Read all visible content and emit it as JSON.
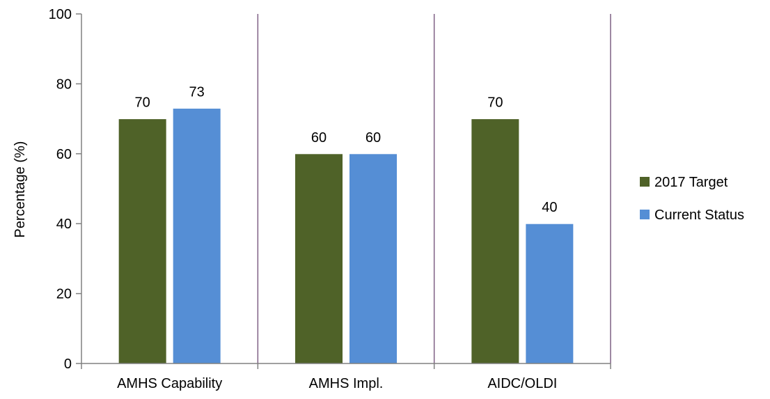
{
  "chart_data": {
    "type": "bar",
    "title": "",
    "xlabel": "",
    "ylabel": "Percentage (%)",
    "ylim": [
      0,
      100
    ],
    "yticks": [
      0,
      20,
      40,
      60,
      80,
      100
    ],
    "categories": [
      "AMHS Capability",
      "AMHS Impl.",
      "AIDC/OLDI"
    ],
    "series": [
      {
        "name": "2017 Target",
        "color": "#4f6228",
        "values": [
          70,
          60,
          70
        ]
      },
      {
        "name": "Current Status",
        "color": "#558ed5",
        "values": [
          73,
          60,
          40
        ]
      }
    ],
    "data_labels": true,
    "legend_position": "right",
    "grid": false,
    "separator_color": "#7f6084",
    "axis_color": "#808080"
  }
}
